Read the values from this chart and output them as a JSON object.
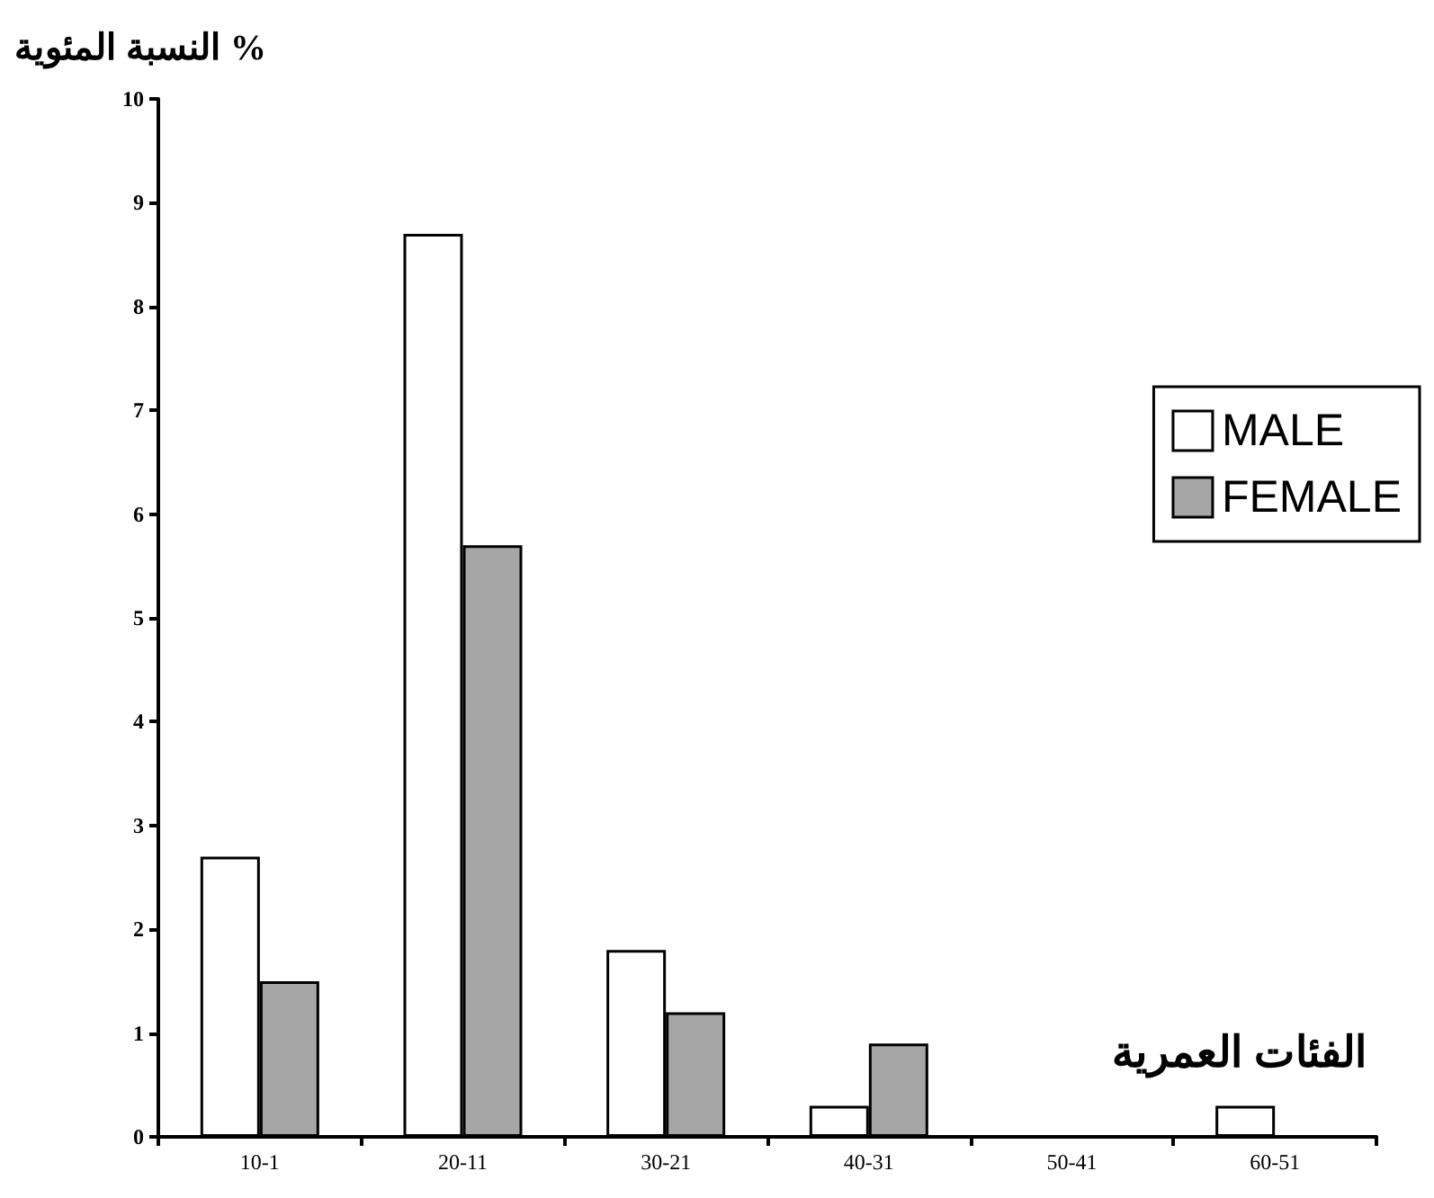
{
  "chart_data": {
    "type": "bar",
    "ylabel": "النسبة المئوية %",
    "xlabel": "الفئات العمرية",
    "categories": [
      "10-1",
      "20-11",
      "30-21",
      "40-31",
      "50-41",
      "60-51"
    ],
    "series": [
      {
        "name": "MALE",
        "color": "#ffffff",
        "values": [
          2.7,
          8.7,
          1.8,
          0.3,
          null,
          0.3
        ]
      },
      {
        "name": "FEMALE",
        "color": "#a6a6a6",
        "values": [
          1.5,
          5.7,
          1.2,
          0.9,
          null,
          null
        ]
      }
    ],
    "ylim": [
      0,
      10
    ],
    "yticks": [
      0,
      1,
      2,
      3,
      4,
      5,
      6,
      7,
      8,
      9,
      10
    ],
    "grid": false,
    "legend": "right"
  }
}
